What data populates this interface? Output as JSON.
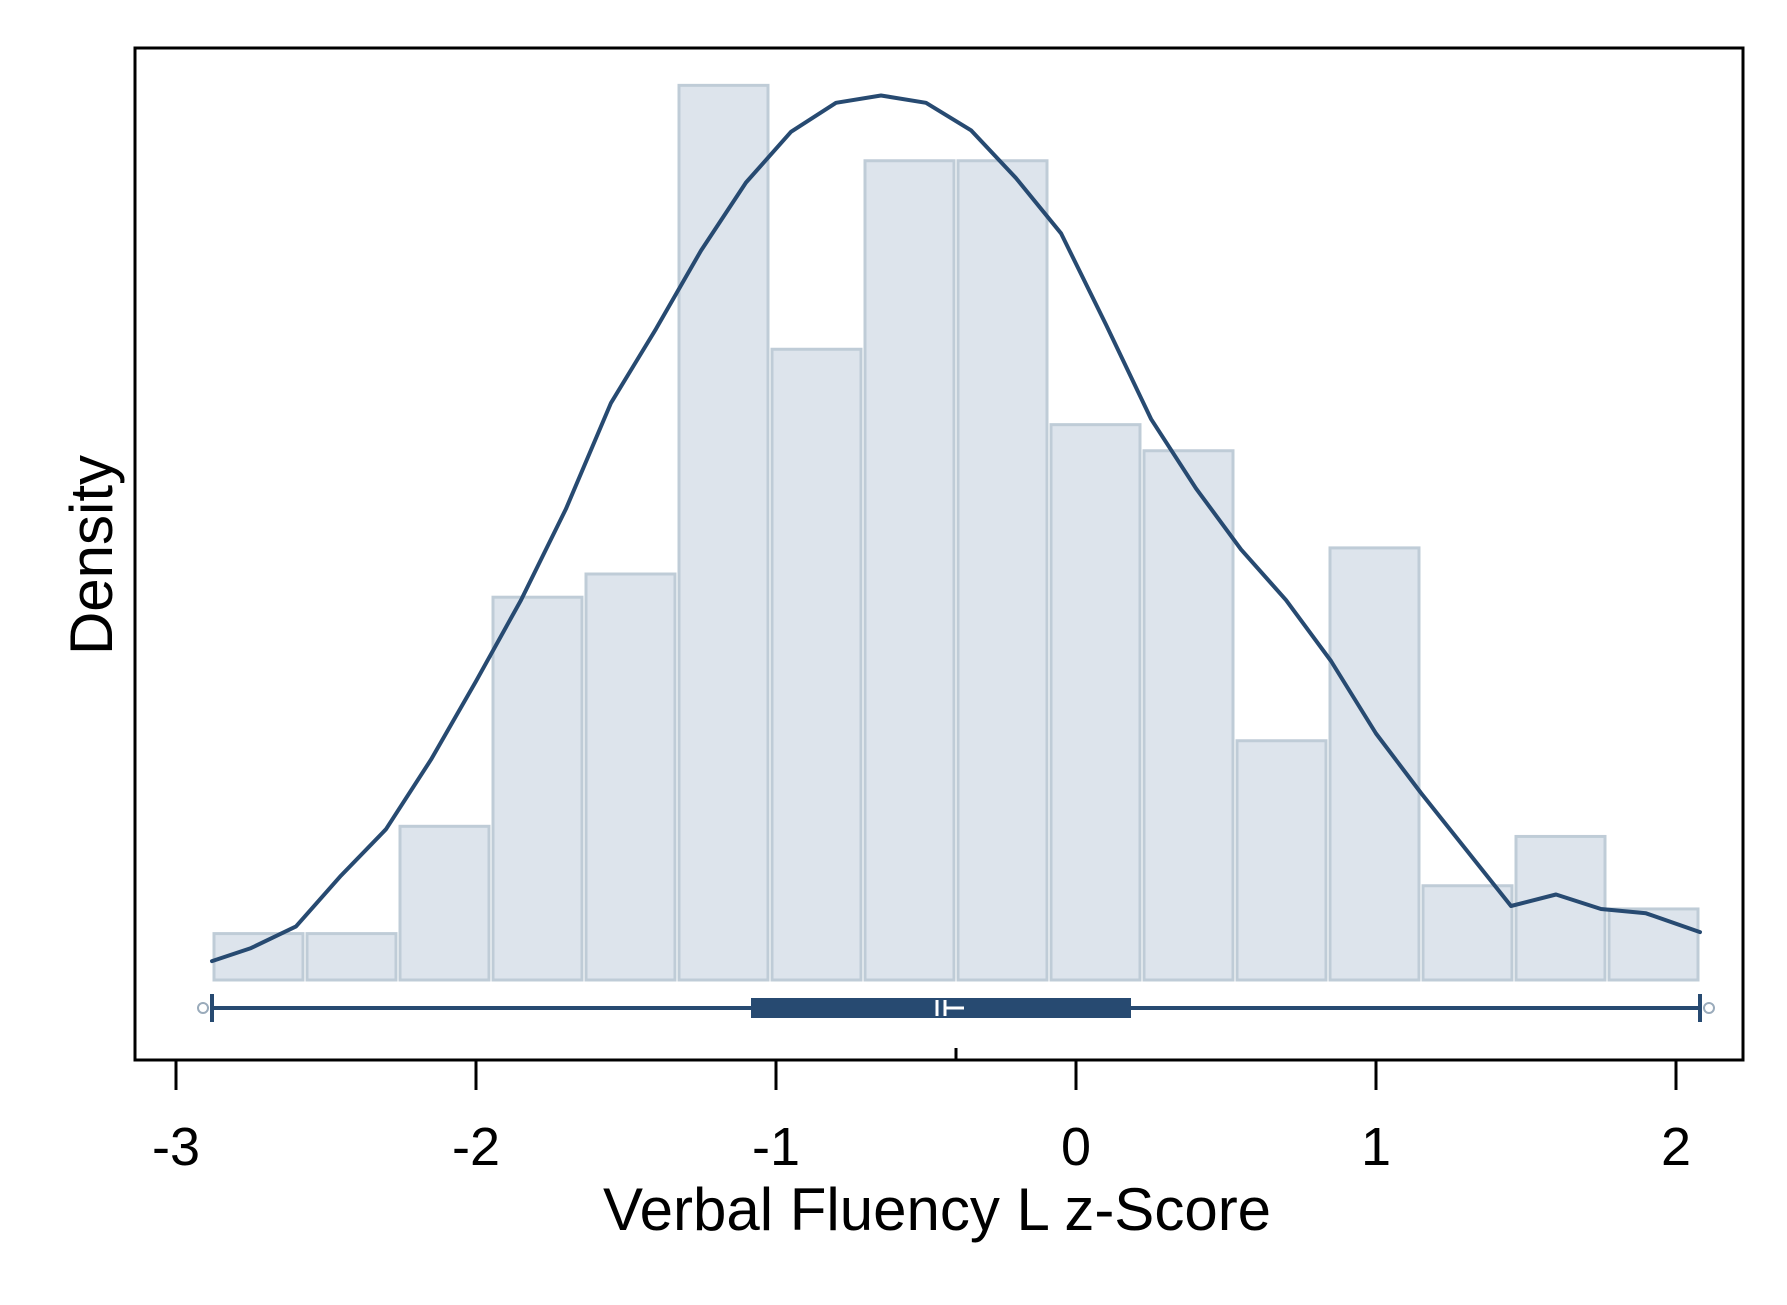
{
  "chart_data": {
    "type": "histogram",
    "title": "",
    "xlabel": "Verbal Fluency L z-Score",
    "ylabel": "Density",
    "xlim": [
      -2.95,
      2.35
    ],
    "ylim": [
      0,
      0.67
    ],
    "x_ticks": [
      -3,
      -2,
      -1,
      0,
      1,
      2
    ],
    "y_ticks_shown": false,
    "grid": false,
    "legend": "none",
    "bins": [
      {
        "x0": -2.88,
        "x1": -2.57,
        "density": 0.032
      },
      {
        "x0": -2.57,
        "x1": -2.26,
        "density": 0.032
      },
      {
        "x0": -2.26,
        "x1": -1.95,
        "density": 0.106
      },
      {
        "x0": -1.95,
        "x1": -1.64,
        "density": 0.264
      },
      {
        "x0": -1.64,
        "x1": -1.33,
        "density": 0.28
      },
      {
        "x0": -1.33,
        "x1": -1.02,
        "density": 0.617
      },
      {
        "x0": -1.02,
        "x1": -0.71,
        "density": 0.435
      },
      {
        "x0": -0.71,
        "x1": -0.4,
        "density": 0.565
      },
      {
        "x0": -0.4,
        "x1": -0.09,
        "density": 0.565
      },
      {
        "x0": -0.09,
        "x1": 0.22,
        "density": 0.383
      },
      {
        "x0": 0.22,
        "x1": 0.53,
        "density": 0.365
      },
      {
        "x0": 0.53,
        "x1": 0.84,
        "density": 0.165
      },
      {
        "x0": 0.84,
        "x1": 1.15,
        "density": 0.298
      },
      {
        "x0": 1.15,
        "x1": 1.46,
        "density": 0.065
      },
      {
        "x0": 1.46,
        "x1": 1.77,
        "density": 0.099
      },
      {
        "x0": 1.77,
        "x1": 2.08,
        "density": 0.049
      }
    ],
    "density_curve": {
      "x": [
        -2.88,
        -2.75,
        -2.6,
        -2.45,
        -2.3,
        -2.15,
        -2.0,
        -1.85,
        -1.7,
        -1.55,
        -1.4,
        -1.25,
        -1.1,
        -0.95,
        -0.8,
        -0.65,
        -0.5,
        -0.35,
        -0.2,
        -0.05,
        0.1,
        0.25,
        0.4,
        0.55,
        0.7,
        0.85,
        1.0,
        1.15,
        1.3,
        1.45,
        1.6,
        1.75,
        1.9,
        2.08
      ],
      "y": [
        0.013,
        0.022,
        0.037,
        0.072,
        0.104,
        0.152,
        0.206,
        0.262,
        0.325,
        0.398,
        0.449,
        0.503,
        0.55,
        0.585,
        0.605,
        0.61,
        0.605,
        0.586,
        0.553,
        0.515,
        0.452,
        0.387,
        0.339,
        0.297,
        0.262,
        0.22,
        0.17,
        0.129,
        0.09,
        0.051,
        0.059,
        0.049,
        0.046,
        0.033
      ]
    },
    "boxplot": {
      "min": -2.88,
      "q1": -1.08,
      "median": -0.45,
      "mean": -0.4,
      "q3": 0.18,
      "max": 2.08
    },
    "colors": {
      "bar_fill": "#dde4ec",
      "bar_stroke": "#bfccd7",
      "curve": "#274a71",
      "box": "#274a71",
      "axis": "#000000"
    }
  }
}
